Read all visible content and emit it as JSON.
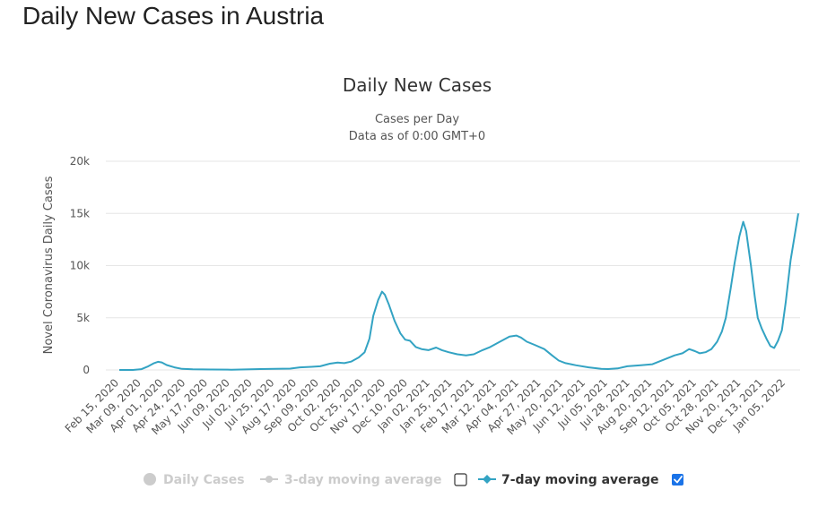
{
  "page": {
    "title": "Daily New Cases in Austria"
  },
  "colors": {
    "series": "#33a3c3",
    "grid": "#e6e6e6",
    "inactive": "#cccccc",
    "checkbox": "#1a73e8"
  },
  "chart_data": {
    "type": "line",
    "title": "Daily New Cases",
    "subtitle": "Cases per Day",
    "subtitle2": "Data as of 0:00 GMT+0",
    "ylabel": "Novel Coronavirus Daily Cases",
    "xlabel": "",
    "ylim": [
      0,
      20000
    ],
    "y_ticks": [
      {
        "value": 0,
        "label": "0"
      },
      {
        "value": 5000,
        "label": "5k"
      },
      {
        "value": 10000,
        "label": "10k"
      },
      {
        "value": 15000,
        "label": "15k"
      },
      {
        "value": 20000,
        "label": "20k"
      }
    ],
    "x_range": [
      "2020-02-15",
      "2022-01-18"
    ],
    "x_ticks": [
      "Feb 15, 2020",
      "Mar 09, 2020",
      "Apr 01, 2020",
      "Apr 24, 2020",
      "May 17, 2020",
      "Jun 09, 2020",
      "Jul 02, 2020",
      "Jul 25, 2020",
      "Aug 17, 2020",
      "Sep 09, 2020",
      "Oct 02, 2020",
      "Oct 25, 2020",
      "Nov 17, 2020",
      "Dec 10, 2020",
      "Jan 02, 2021",
      "Jan 25, 2021",
      "Feb 17, 2021",
      "Mar 12, 2021",
      "Apr 04, 2021",
      "Apr 27, 2021",
      "May 20, 2021",
      "Jun 12, 2021",
      "Jul 05, 2021",
      "Jul 28, 2021",
      "Aug 20, 2021",
      "Sep 12, 2021",
      "Oct 05, 2021",
      "Oct 28, 2021",
      "Nov 20, 2021",
      "Dec 13, 2021",
      "Jan 05, 2022"
    ],
    "grid": true,
    "legend_position": "bottom",
    "legend": [
      {
        "label": "Daily Cases",
        "active": false,
        "marker": "circle"
      },
      {
        "label": "3-day moving average",
        "active": false,
        "marker": "circle-line"
      },
      {
        "label": "7-day moving average",
        "active": true,
        "marker": "diamond-line"
      }
    ],
    "series": [
      {
        "name": "7-day moving average",
        "points": [
          [
            "2020-02-15",
            0
          ],
          [
            "2020-02-29",
            0
          ],
          [
            "2020-03-09",
            80
          ],
          [
            "2020-03-16",
            350
          ],
          [
            "2020-03-22",
            650
          ],
          [
            "2020-03-26",
            780
          ],
          [
            "2020-03-30",
            720
          ],
          [
            "2020-04-04",
            470
          ],
          [
            "2020-04-12",
            250
          ],
          [
            "2020-04-20",
            100
          ],
          [
            "2020-05-01",
            60
          ],
          [
            "2020-05-20",
            40
          ],
          [
            "2020-06-10",
            30
          ],
          [
            "2020-06-25",
            50
          ],
          [
            "2020-07-10",
            90
          ],
          [
            "2020-07-25",
            100
          ],
          [
            "2020-08-10",
            130
          ],
          [
            "2020-08-20",
            250
          ],
          [
            "2020-09-01",
            300
          ],
          [
            "2020-09-10",
            350
          ],
          [
            "2020-09-20",
            600
          ],
          [
            "2020-09-28",
            700
          ],
          [
            "2020-10-05",
            650
          ],
          [
            "2020-10-12",
            800
          ],
          [
            "2020-10-20",
            1200
          ],
          [
            "2020-10-26",
            1700
          ],
          [
            "2020-10-31",
            3000
          ],
          [
            "2020-11-04",
            5200
          ],
          [
            "2020-11-09",
            6700
          ],
          [
            "2020-11-13",
            7500
          ],
          [
            "2020-11-16",
            7200
          ],
          [
            "2020-11-20",
            6300
          ],
          [
            "2020-11-26",
            4700
          ],
          [
            "2020-12-02",
            3500
          ],
          [
            "2020-12-07",
            2900
          ],
          [
            "2020-12-12",
            2800
          ],
          [
            "2020-12-18",
            2200
          ],
          [
            "2020-12-24",
            2000
          ],
          [
            "2020-12-31",
            1900
          ],
          [
            "2021-01-08",
            2150
          ],
          [
            "2021-01-14",
            1900
          ],
          [
            "2021-01-21",
            1700
          ],
          [
            "2021-01-30",
            1500
          ],
          [
            "2021-02-08",
            1400
          ],
          [
            "2021-02-16",
            1500
          ],
          [
            "2021-02-25",
            1900
          ],
          [
            "2021-03-05",
            2200
          ],
          [
            "2021-03-15",
            2700
          ],
          [
            "2021-03-25",
            3200
          ],
          [
            "2021-04-01",
            3300
          ],
          [
            "2021-04-06",
            3100
          ],
          [
            "2021-04-12",
            2700
          ],
          [
            "2021-04-20",
            2400
          ],
          [
            "2021-04-30",
            2000
          ],
          [
            "2021-05-08",
            1400
          ],
          [
            "2021-05-15",
            900
          ],
          [
            "2021-05-22",
            650
          ],
          [
            "2021-06-02",
            450
          ],
          [
            "2021-06-15",
            250
          ],
          [
            "2021-06-28",
            100
          ],
          [
            "2021-07-05",
            90
          ],
          [
            "2021-07-15",
            150
          ],
          [
            "2021-07-25",
            350
          ],
          [
            "2021-08-08",
            450
          ],
          [
            "2021-08-20",
            550
          ],
          [
            "2021-09-01",
            1000
          ],
          [
            "2021-09-12",
            1400
          ],
          [
            "2021-09-20",
            1600
          ],
          [
            "2021-09-27",
            2000
          ],
          [
            "2021-10-03",
            1800
          ],
          [
            "2021-10-08",
            1600
          ],
          [
            "2021-10-14",
            1700
          ],
          [
            "2021-10-20",
            2000
          ],
          [
            "2021-10-26",
            2700
          ],
          [
            "2021-10-31",
            3700
          ],
          [
            "2021-11-04",
            5000
          ],
          [
            "2021-11-09",
            7800
          ],
          [
            "2021-11-13",
            10200
          ],
          [
            "2021-11-18",
            12800
          ],
          [
            "2021-11-22",
            14200
          ],
          [
            "2021-11-25",
            13300
          ],
          [
            "2021-11-30",
            10000
          ],
          [
            "2021-12-04",
            7000
          ],
          [
            "2021-12-07",
            5000
          ],
          [
            "2021-12-11",
            4000
          ],
          [
            "2021-12-16",
            3000
          ],
          [
            "2021-12-20",
            2300
          ],
          [
            "2021-12-24",
            2100
          ],
          [
            "2021-12-28",
            2800
          ],
          [
            "2022-01-01",
            3800
          ],
          [
            "2022-01-05",
            6500
          ],
          [
            "2022-01-10",
            10500
          ],
          [
            "2022-01-18",
            15000
          ]
        ]
      }
    ]
  }
}
